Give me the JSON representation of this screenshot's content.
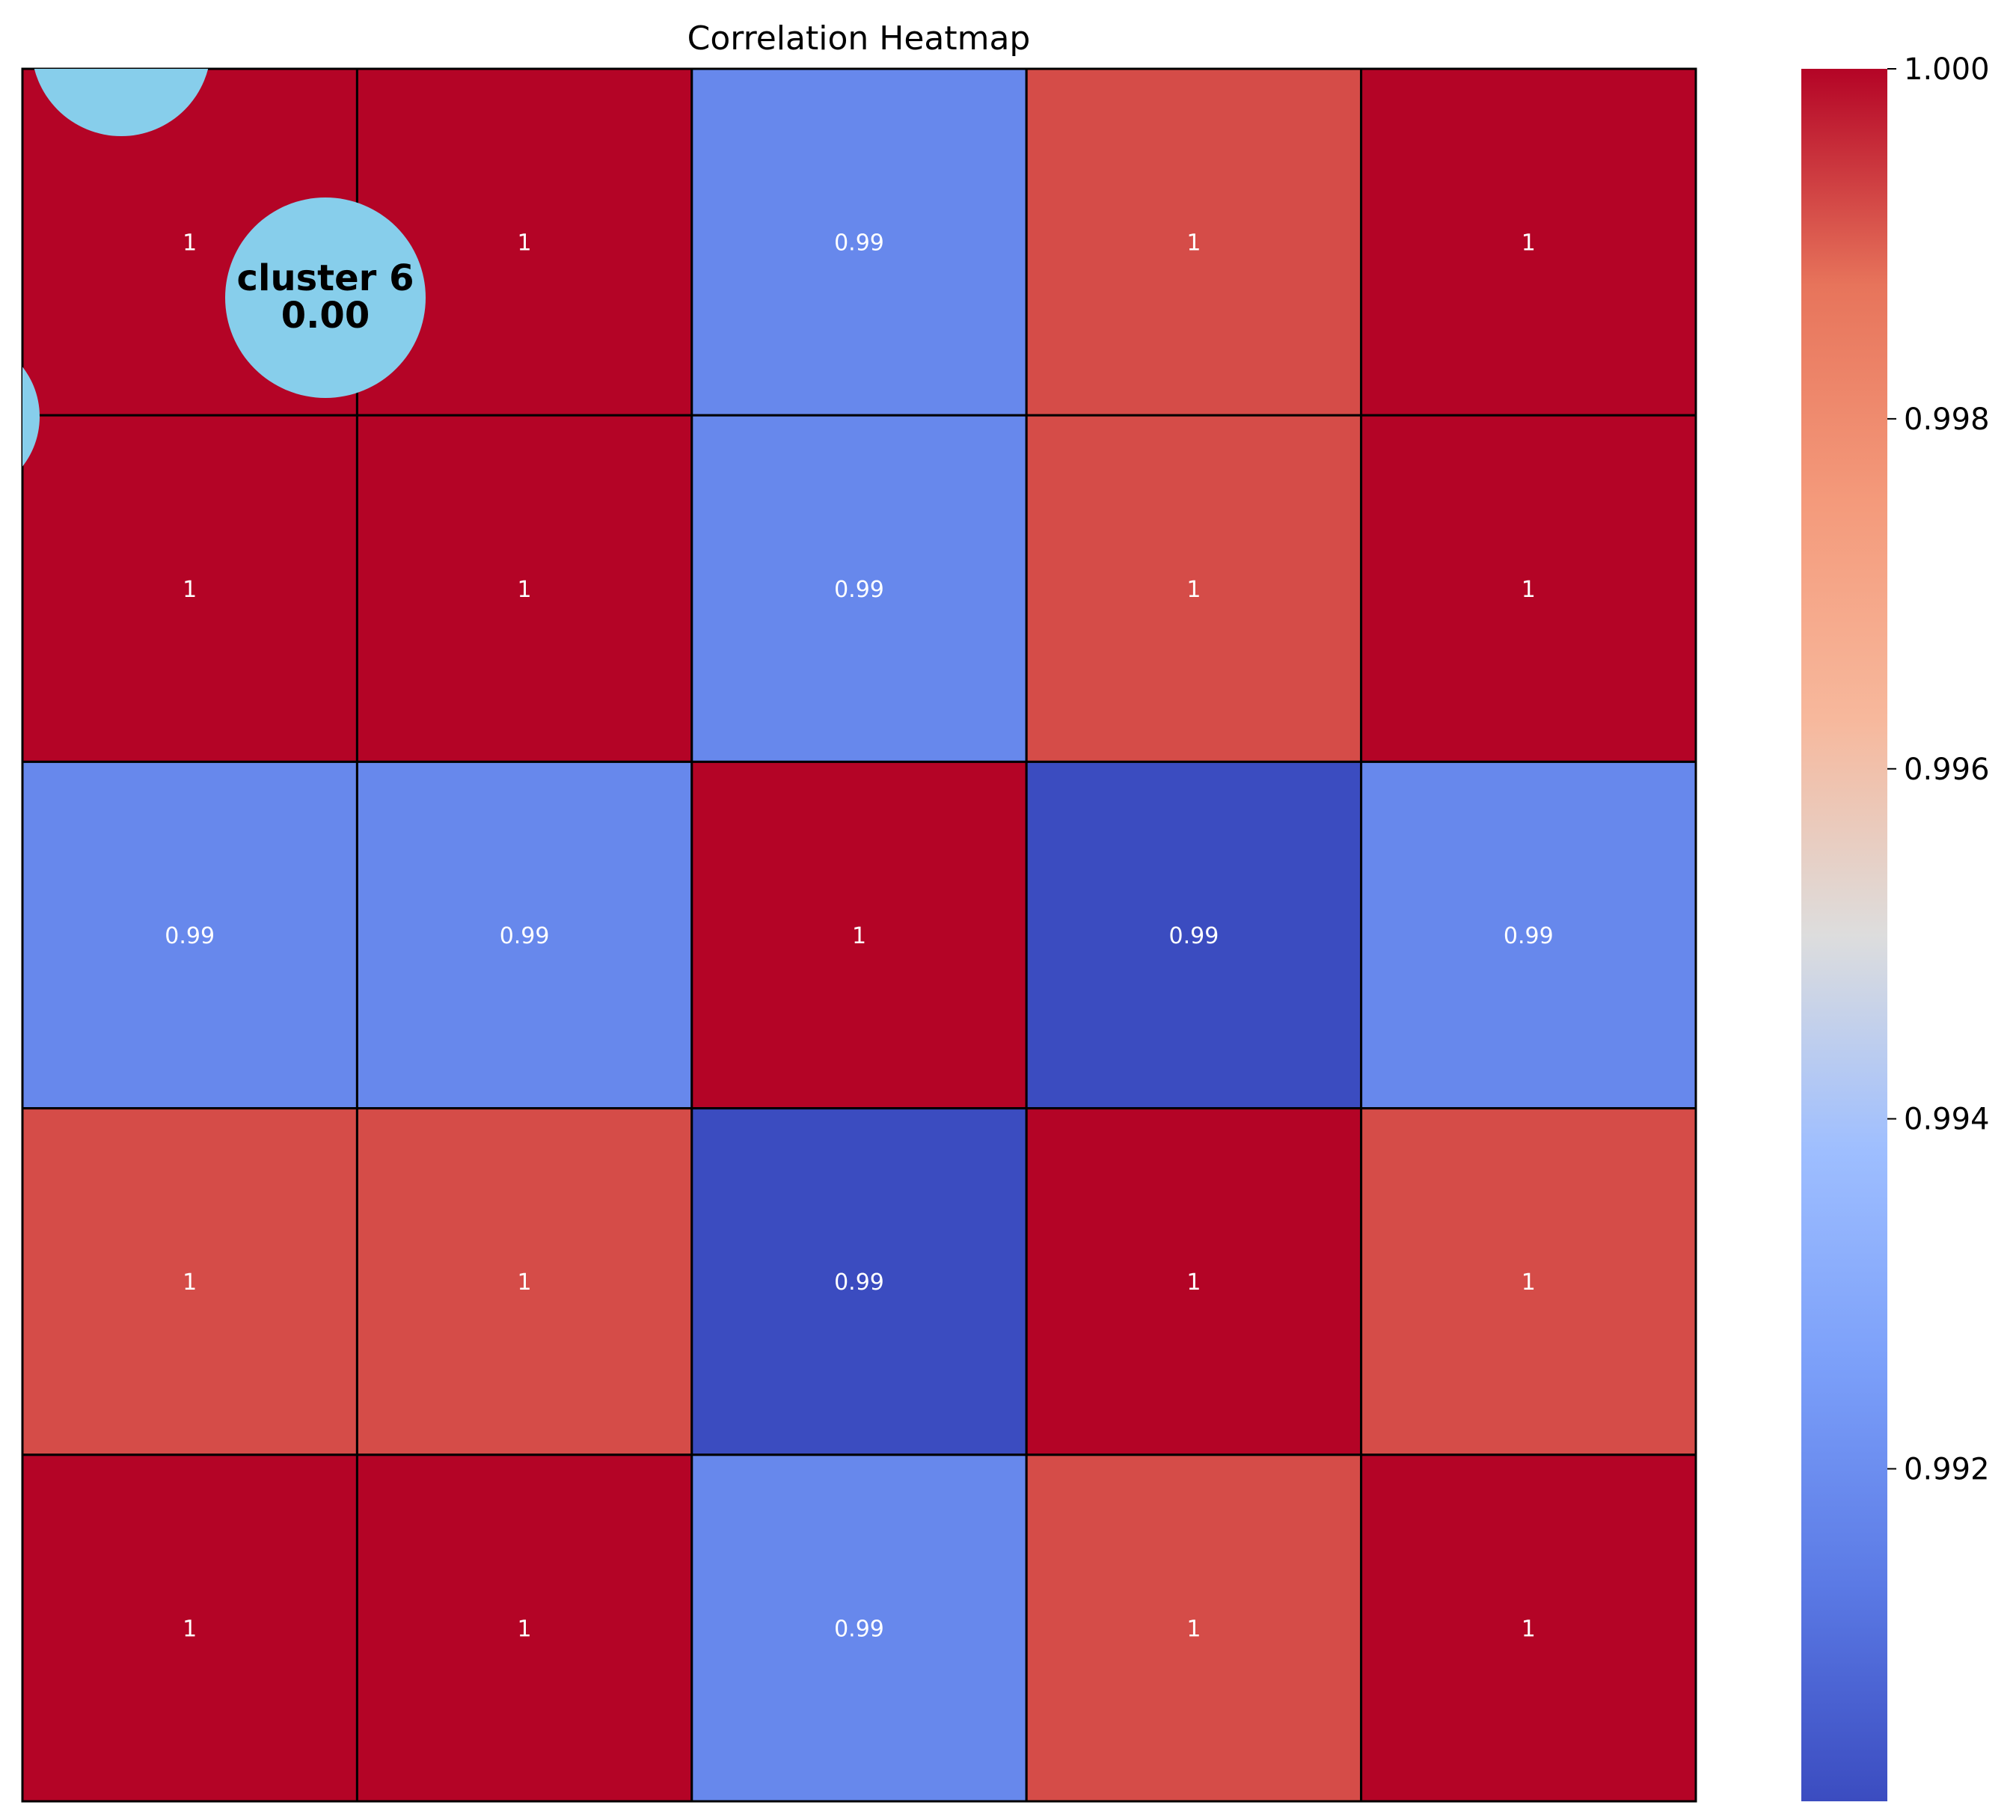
{
  "chart_data": {
    "type": "heatmap",
    "title": "Correlation Heatmap",
    "colormap": "coolwarm",
    "color_range": [
      0.9901,
      1.0
    ],
    "values": [
      [
        1.0,
        1.0,
        0.9918,
        0.9992,
        1.0
      ],
      [
        1.0,
        1.0,
        0.9918,
        0.9992,
        1.0
      ],
      [
        0.9918,
        0.9918,
        1.0,
        0.9901,
        0.9918
      ],
      [
        0.9992,
        0.9992,
        0.9901,
        1.0,
        0.9992
      ],
      [
        1.0,
        1.0,
        0.9918,
        0.9992,
        1.0
      ]
    ],
    "annotations": [
      [
        "1",
        "1",
        "0.99",
        "1",
        "1"
      ],
      [
        "1",
        "1",
        "0.99",
        "1",
        "1"
      ],
      [
        "0.99",
        "0.99",
        "1",
        "0.99",
        "0.99"
      ],
      [
        "1",
        "1",
        "0.99",
        "1",
        "1"
      ],
      [
        "1",
        "1",
        "0.99",
        "1",
        "1"
      ]
    ],
    "colorbar": {
      "ticks": [
        0.992,
        0.994,
        0.996,
        0.998,
        1.0
      ],
      "tick_labels": [
        "0.992",
        "0.994",
        "0.996",
        "0.998",
        "1.000"
      ]
    },
    "overlay_bubbles": [
      {
        "label": "cluster 6",
        "value": "0.00",
        "color": "#87ceeb"
      },
      {
        "label": "",
        "value": "",
        "color": "#87ceeb"
      },
      {
        "label": "",
        "value": "",
        "color": "#87ceeb"
      }
    ],
    "cell_border_color": "#000000",
    "annotation_color": "#ffffff"
  }
}
